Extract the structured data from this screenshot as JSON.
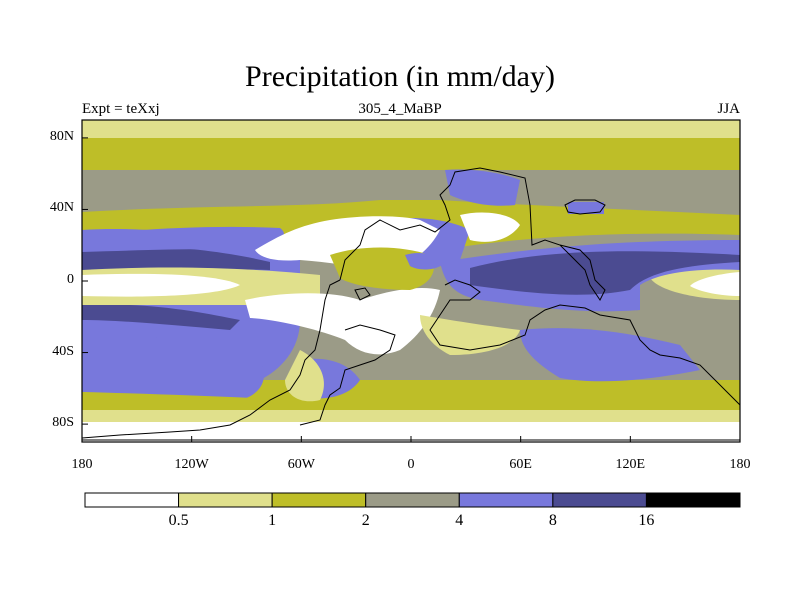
{
  "title": "Precipitation (in mm/day)",
  "subtitle_left": "Expt = teXxj",
  "subtitle_center": "305_4_MaBP",
  "subtitle_right": "JJA",
  "chart_data": {
    "type": "heatmap",
    "title": "Precipitation (in mm/day)",
    "x_ticks": [
      "180",
      "120W",
      "60W",
      "0",
      "60E",
      "120E",
      "180"
    ],
    "x_values": [
      -180,
      -120,
      -60,
      0,
      60,
      120,
      180
    ],
    "y_ticks": [
      "80N",
      "40N",
      "0",
      "40S",
      "80S"
    ],
    "y_values": [
      80,
      40,
      0,
      -40,
      -80
    ],
    "xlim": [
      -180,
      180
    ],
    "ylim": [
      -90,
      90
    ],
    "units": "mm/day",
    "levels": [
      "0.5",
      "1",
      "2",
      "4",
      "8",
      "16"
    ],
    "level_values": [
      0.5,
      1,
      2,
      4,
      8,
      16
    ],
    "colors": [
      "#ffffff",
      "#e0e08c",
      "#bebe28",
      "#9b9b87",
      "#7878dc",
      "#4b4b91",
      "#000000"
    ]
  }
}
